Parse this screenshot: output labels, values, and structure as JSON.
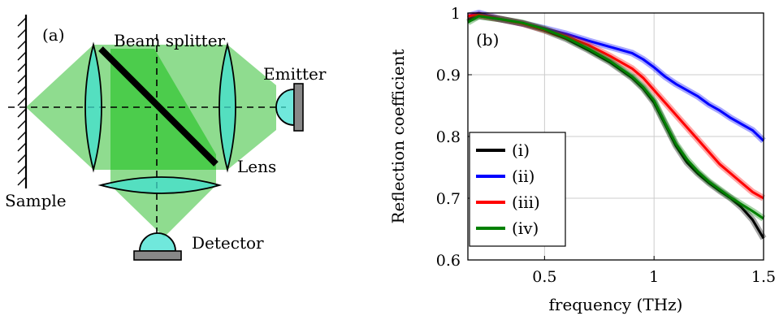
{
  "diagram": {
    "panel_label": "(a)",
    "labels": {
      "beam_splitter": "Beam splitter",
      "emitter": "Emitter",
      "lens": "Lens",
      "sample": "Sample",
      "detector": "Detector"
    },
    "colors": {
      "beam_light": "#8fdc8f",
      "beam_dark": "#4ccc4c",
      "lens_fill": "#40e0d0",
      "device_gray": "#888888"
    }
  },
  "chart_data": {
    "type": "line",
    "panel_label": "(b)",
    "xlabel": "frequency (THz)",
    "ylabel": "Reflection coefficient",
    "xlim": [
      0.15,
      1.5
    ],
    "ylim": [
      0.6,
      1.0
    ],
    "xticks": [
      "0.5",
      "1",
      "1.5"
    ],
    "xtick_values": [
      0.5,
      1.0,
      1.5
    ],
    "yticks": [
      "0.6",
      "0.7",
      "0.8",
      "0.9",
      "1"
    ],
    "ytick_values": [
      0.6,
      0.7,
      0.8,
      0.9,
      1.0
    ],
    "grid": true,
    "legend_position": "bottom-left",
    "series": [
      {
        "name": "(i)",
        "color": "#000000",
        "x": [
          0.15,
          0.2,
          0.3,
          0.4,
          0.5,
          0.6,
          0.7,
          0.8,
          0.9,
          0.95,
          1.0,
          1.05,
          1.1,
          1.15,
          1.2,
          1.25,
          1.3,
          1.35,
          1.4,
          1.45,
          1.5
        ],
        "y": [
          0.99,
          0.995,
          0.99,
          0.983,
          0.972,
          0.958,
          0.94,
          0.92,
          0.895,
          0.878,
          0.855,
          0.82,
          0.785,
          0.758,
          0.74,
          0.725,
          0.712,
          0.7,
          0.685,
          0.665,
          0.635
        ]
      },
      {
        "name": "(ii)",
        "color": "#0000ff",
        "x": [
          0.15,
          0.2,
          0.3,
          0.4,
          0.5,
          0.6,
          0.7,
          0.8,
          0.9,
          0.95,
          1.0,
          1.05,
          1.1,
          1.15,
          1.2,
          1.25,
          1.3,
          1.35,
          1.4,
          1.45,
          1.5
        ],
        "y": [
          0.995,
          1.0,
          0.99,
          0.983,
          0.975,
          0.966,
          0.955,
          0.945,
          0.935,
          0.925,
          0.912,
          0.897,
          0.885,
          0.875,
          0.865,
          0.852,
          0.842,
          0.83,
          0.82,
          0.81,
          0.793
        ]
      },
      {
        "name": "(iii)",
        "color": "#ff0000",
        "x": [
          0.15,
          0.2,
          0.3,
          0.4,
          0.5,
          0.6,
          0.7,
          0.8,
          0.9,
          0.95,
          1.0,
          1.05,
          1.1,
          1.15,
          1.2,
          1.25,
          1.3,
          1.35,
          1.4,
          1.45,
          1.5
        ],
        "y": [
          0.995,
          0.997,
          0.99,
          0.983,
          0.973,
          0.962,
          0.948,
          0.93,
          0.91,
          0.895,
          0.875,
          0.855,
          0.835,
          0.815,
          0.795,
          0.775,
          0.755,
          0.74,
          0.725,
          0.71,
          0.7
        ]
      },
      {
        "name": "(iv)",
        "color": "#008000",
        "x": [
          0.15,
          0.2,
          0.3,
          0.4,
          0.5,
          0.6,
          0.7,
          0.8,
          0.9,
          0.95,
          1.0,
          1.05,
          1.1,
          1.15,
          1.2,
          1.25,
          1.3,
          1.35,
          1.4,
          1.45,
          1.5
        ],
        "y": [
          0.985,
          0.995,
          0.99,
          0.984,
          0.974,
          0.96,
          0.942,
          0.922,
          0.897,
          0.88,
          0.858,
          0.822,
          0.788,
          0.763,
          0.743,
          0.727,
          0.714,
          0.701,
          0.69,
          0.679,
          0.667
        ]
      }
    ]
  }
}
